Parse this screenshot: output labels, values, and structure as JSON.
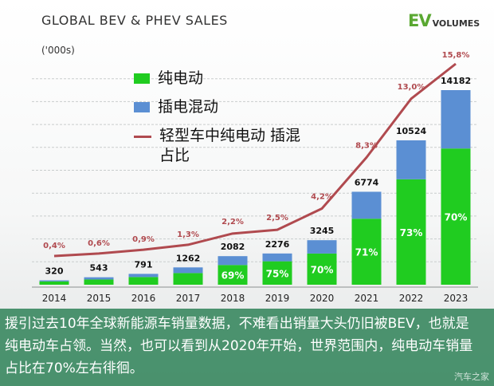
{
  "chart_data": {
    "type": "bar",
    "title": "GLOBAL BEV & PHEV SALES",
    "unit_label": "('000s)",
    "categories": [
      "2014",
      "2015",
      "2016",
      "2017",
      "2018",
      "2019",
      "2020",
      "2021",
      "2022",
      "2023"
    ],
    "totals": [
      320,
      543,
      791,
      1262,
      2082,
      2276,
      3245,
      6774,
      10524,
      14182
    ],
    "series": [
      {
        "name": "纯电动",
        "color": "#20cc20",
        "values": [
          240,
          380,
          560,
          850,
          1437,
          1707,
          2272,
          4810,
          7683,
          9927
        ]
      },
      {
        "name": "插电混动",
        "color": "#5b8fd3",
        "values": [
          80,
          163,
          231,
          412,
          645,
          569,
          973,
          1964,
          2841,
          4255
        ]
      }
    ],
    "bev_share_labels": [
      {
        "category": "2018",
        "label": "69%"
      },
      {
        "category": "2019",
        "label": "75%"
      },
      {
        "category": "2020",
        "label": "70%"
      },
      {
        "category": "2021",
        "label": "71%"
      },
      {
        "category": "2022",
        "label": "73%"
      },
      {
        "category": "2023",
        "label": "70%"
      }
    ],
    "line_series": {
      "name": "轻型车中纯电动 插混占比",
      "color": "#b04a4f",
      "values": [
        0.4,
        0.6,
        0.9,
        1.3,
        2.2,
        2.5,
        4.2,
        8.3,
        13.0,
        15.8
      ],
      "labels": [
        "0,4%",
        "0,6%",
        "0,9%",
        "1,3%",
        "2,2%",
        "2,5%",
        "4,2%",
        "8,3%",
        "13,0%",
        "15,8%"
      ]
    },
    "ylim": [
      0,
      15000
    ],
    "line_ylim": [
      0,
      17
    ],
    "grid": true
  },
  "branding": {
    "logo_ev": "EV",
    "logo_volumes": "VOLUMES"
  },
  "legend": [
    {
      "label": "纯电动",
      "color": "#20cc20",
      "kind": "box"
    },
    {
      "label": "插电混动",
      "color": "#5b8fd3",
      "kind": "box"
    },
    {
      "label_line1": "轻型车中纯电动 插混",
      "label_line2": "占比",
      "color": "#b04a4f",
      "kind": "line"
    }
  ],
  "caption": {
    "text": "援引过去10年全球新能源车销量数据，不难看出销量大头仍旧被BEV，也就是纯电动车占领。当然，也可以看到从2020年开始，世界范围内，纯电动车销量占比在70%左右徘徊。",
    "watermark": "汽车之家"
  }
}
